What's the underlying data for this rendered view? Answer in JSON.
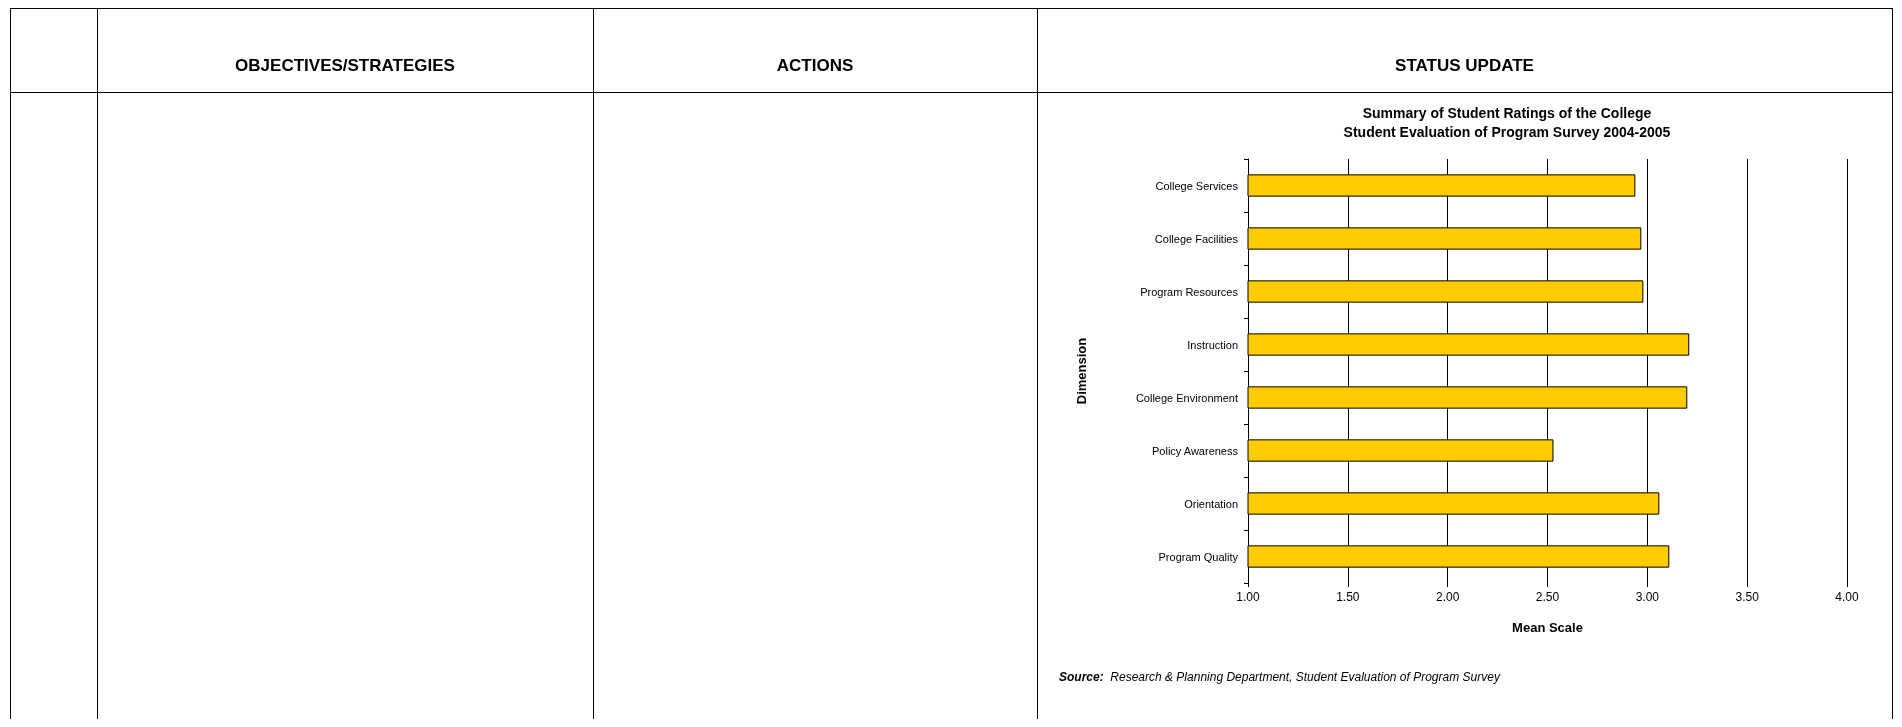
{
  "chart_data": {
    "type": "bar",
    "orientation": "horizontal",
    "title": "Summary of Student Ratings of the College\nStudent Evaluation of Program Survey 2004-2005",
    "xlabel": "Mean Scale",
    "ylabel": "Dimension",
    "categories": [
      "College Services",
      "College Facilities",
      "Program Resources",
      "Instruction",
      "College Environment",
      "Policy Awareness",
      "Orientation",
      "Program Quality"
    ],
    "values": [
      2.94,
      2.97,
      2.98,
      3.21,
      3.2,
      2.53,
      3.06,
      3.11
    ],
    "color": "#ffcc00",
    "xlim": [
      1,
      4
    ],
    "xticks": [
      {
        "value": 1,
        "label": "1.00"
      },
      {
        "value": 1.5,
        "label": "1.50"
      },
      {
        "value": 2,
        "label": "2.00"
      },
      {
        "value": 2.5,
        "label": "2.50"
      },
      {
        "value": 3,
        "label": "3.00"
      },
      {
        "value": 3.5,
        "label": "3.50"
      },
      {
        "value": 4,
        "label": "4.00"
      }
    ],
    "grid": "x",
    "annotations": [
      "OBJECTIVES/STRATEGIES",
      "ACTIONS",
      "STATUS UPDATE",
      "Source:  Research & Planning Department, Student Evaluation of Program Survey"
    ]
  }
}
